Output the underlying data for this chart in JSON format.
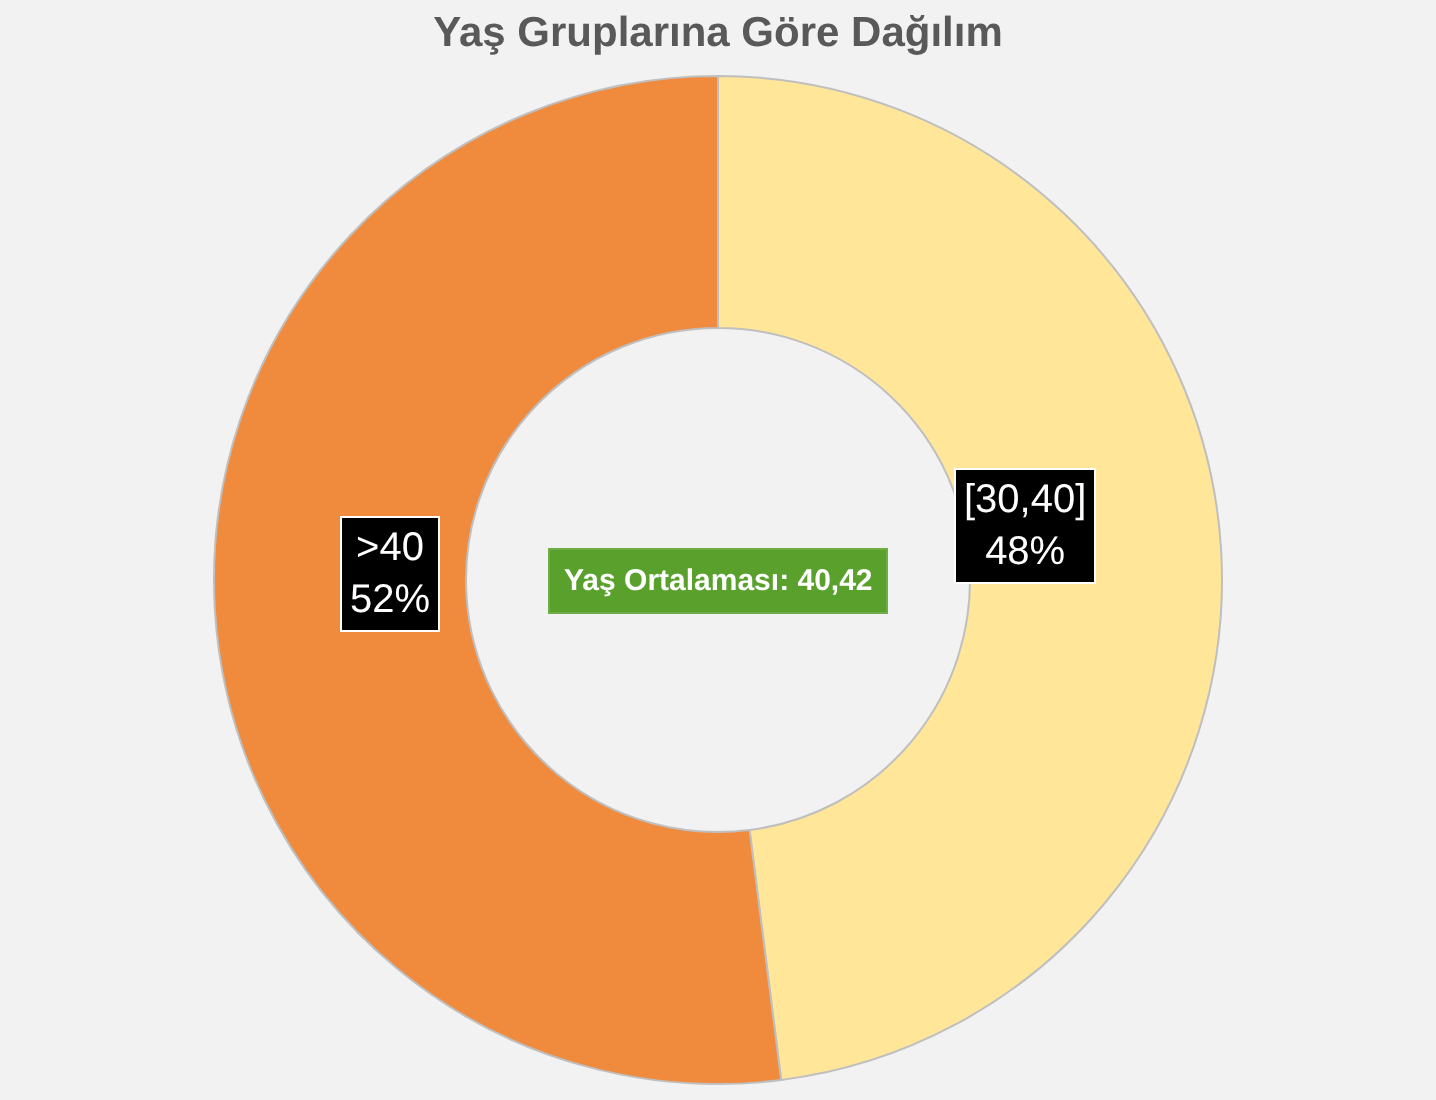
{
  "chart_data": {
    "type": "donut",
    "title": "Yaş Gruplarına Göre Dağılım",
    "categories": [
      "[30,40]",
      ">40"
    ],
    "values": [
      48,
      52
    ],
    "colors": [
      "#ffe699",
      "#f08a3c"
    ],
    "value_labels": [
      "48%",
      "52%"
    ],
    "legend": false,
    "annotations": [
      "Yaş Ortalaması: 40,42"
    ]
  }
}
